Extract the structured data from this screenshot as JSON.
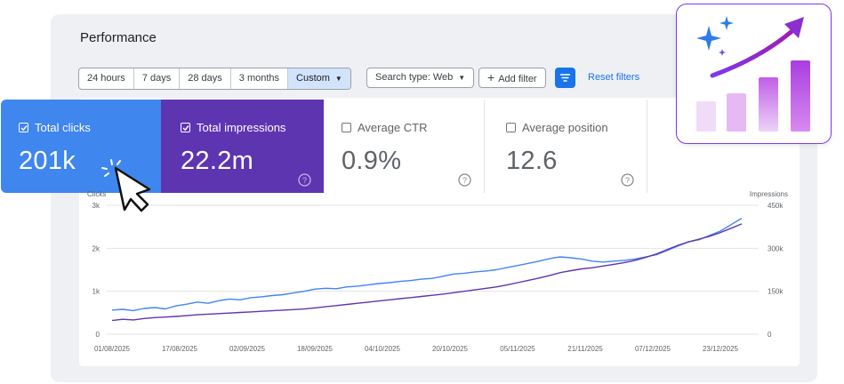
{
  "title": "Performance",
  "date_ranges": [
    {
      "label": "24 hours",
      "selected": false
    },
    {
      "label": "7 days",
      "selected": false
    },
    {
      "label": "28 days",
      "selected": false
    },
    {
      "label": "3 months",
      "selected": false
    },
    {
      "label": "Custom",
      "selected": true
    }
  ],
  "search_type": "Search type: Web",
  "add_filter": "Add filter",
  "reset_filters": "Reset filters",
  "metrics": {
    "clicks": {
      "label": "Total clicks",
      "value": "201k",
      "checked": true,
      "color": "#3f86ee"
    },
    "impressions": {
      "label": "Total impressions",
      "value": "22.2m",
      "checked": true,
      "color": "#5e35b1"
    },
    "ctr": {
      "label": "Average CTR",
      "value": "0.9%",
      "checked": false
    },
    "position": {
      "label": "Average position",
      "value": "12.6",
      "checked": false
    }
  },
  "chart_data": {
    "type": "line",
    "left_axis_label": "Clicks",
    "right_axis_label": "Impressions",
    "left_ticks": [
      "0",
      "1k",
      "2k",
      "3k"
    ],
    "right_ticks": [
      "0",
      "150k",
      "300k",
      "450k"
    ],
    "ylim_left": [
      0,
      3000
    ],
    "ylim_right": [
      0,
      450000
    ],
    "x_tick_labels": [
      "01/08/2025",
      "17/08/2025",
      "02/09/2025",
      "18/09/2025",
      "04/10/2025",
      "20/10/2025",
      "05/11/2025",
      "21/11/2025",
      "07/12/2025",
      "23/12/2025"
    ],
    "grid": true,
    "x_points_per_tick": 16,
    "series": [
      {
        "name": "Clicks",
        "axis": "left",
        "color": "#4285f4",
        "values": [
          560,
          580,
          550,
          600,
          620,
          590,
          660,
          700,
          750,
          720,
          780,
          820,
          800,
          850,
          870,
          900,
          920,
          960,
          1000,
          1050,
          1070,
          1060,
          1100,
          1120,
          1150,
          1180,
          1200,
          1230,
          1250,
          1280,
          1300,
          1350,
          1400,
          1420,
          1450,
          1470,
          1500,
          1550,
          1600,
          1650,
          1700,
          1760,
          1800,
          1780,
          1750,
          1700,
          1680,
          1700,
          1720,
          1750,
          1800,
          1850,
          1950,
          2050,
          2150,
          2200,
          2300,
          2400,
          2550,
          2700
        ]
      },
      {
        "name": "Impressions",
        "axis": "right",
        "color": "#5e35b1",
        "values": [
          48000,
          52000,
          50000,
          55000,
          58000,
          60000,
          62000,
          65000,
          68000,
          70000,
          72000,
          74000,
          76000,
          78000,
          80000,
          82000,
          84000,
          86000,
          88000,
          92000,
          96000,
          100000,
          104000,
          108000,
          112000,
          116000,
          120000,
          124000,
          128000,
          132000,
          136000,
          140000,
          145000,
          150000,
          155000,
          160000,
          165000,
          172000,
          180000,
          188000,
          196000,
          205000,
          215000,
          222000,
          228000,
          232000,
          238000,
          244000,
          250000,
          258000,
          268000,
          280000,
          295000,
          310000,
          322000,
          332000,
          342000,
          355000,
          370000,
          385000
        ]
      }
    ]
  }
}
